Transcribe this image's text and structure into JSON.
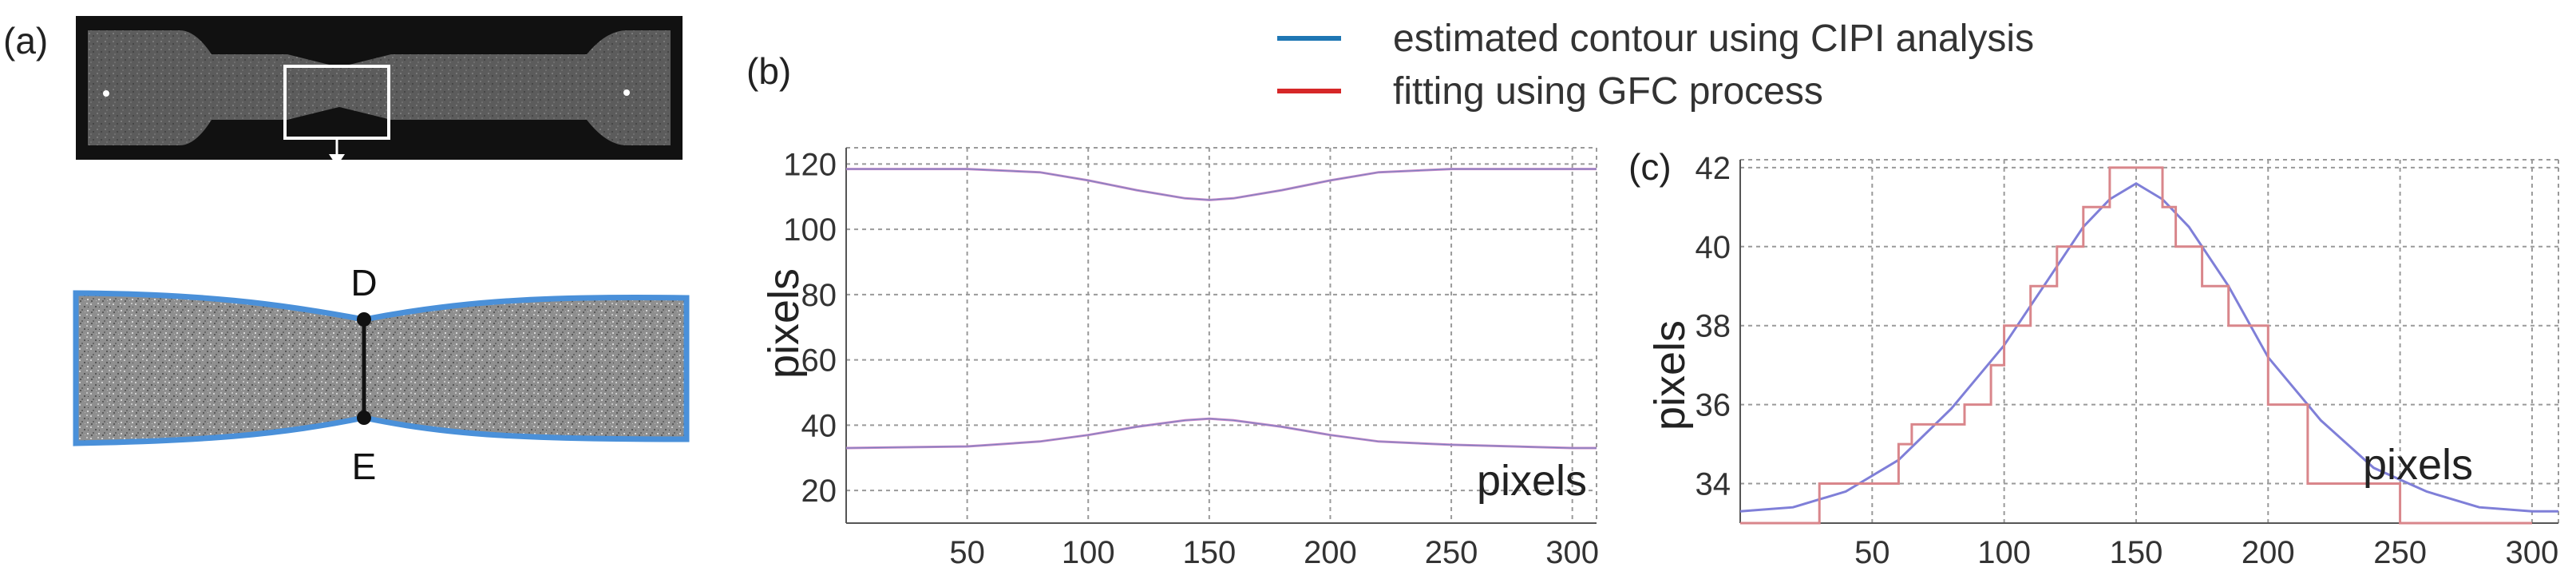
{
  "labels": {
    "panel_a": "(a)",
    "panel_b": "(b)",
    "panel_c": "(c)",
    "point_d": "D",
    "point_e": "E"
  },
  "legend": [
    {
      "label": "estimated contour using CIPI analysis",
      "color": "#1f77b4"
    },
    {
      "label": "fitting using GFC process",
      "color": "#d62728"
    }
  ],
  "colors": {
    "cipi": "#1f77b4",
    "gfc": "#d62728",
    "fit_b": "#c989c9",
    "fit_c": "#7f7fd8",
    "step_c": "#d9868b",
    "grid": "#9a9a9a",
    "specimen_outline": "#4a90d9"
  },
  "chart_data": [
    {
      "id": "b",
      "type": "line",
      "xlabel": "pixels",
      "ylabel": "pixels",
      "xlim": [
        0,
        310
      ],
      "ylim": [
        10,
        125
      ],
      "xticks": [
        50,
        100,
        150,
        200,
        250,
        300
      ],
      "yticks": [
        20,
        40,
        60,
        80,
        100,
        120
      ],
      "grid": true,
      "series": [
        {
          "x": [
            0,
            50,
            80,
            100,
            120,
            140,
            150,
            160,
            180,
            200,
            220,
            250,
            300,
            310
          ],
          "values": [
            118.5,
            118.5,
            117.5,
            115,
            112,
            109.5,
            109,
            109.5,
            112,
            115,
            117.5,
            118.5,
            118.5,
            118.5
          ]
        },
        {
          "x": [
            0,
            50,
            80,
            100,
            120,
            140,
            150,
            160,
            180,
            200,
            220,
            250,
            300,
            310
          ],
          "values": [
            33,
            33.5,
            35,
            37,
            39.5,
            41.5,
            42,
            41.5,
            39.5,
            37,
            35,
            34,
            33,
            33
          ]
        }
      ]
    },
    {
      "id": "c",
      "type": "line",
      "xlabel": "pixels",
      "ylabel": "pixels",
      "xlim": [
        0,
        310
      ],
      "ylim": [
        33.0,
        42.2
      ],
      "xticks": [
        50,
        100,
        150,
        200,
        250,
        300
      ],
      "yticks": [
        34,
        36,
        38,
        40,
        42
      ],
      "grid": true,
      "series": [
        {
          "x": [
            0,
            20,
            40,
            60,
            80,
            100,
            115,
            130,
            140,
            150,
            160,
            170,
            185,
            200,
            220,
            240,
            260,
            280,
            300,
            310
          ],
          "values": [
            33.3,
            33.4,
            33.8,
            34.6,
            35.9,
            37.5,
            39.0,
            40.5,
            41.2,
            41.6,
            41.2,
            40.5,
            39.0,
            37.2,
            35.6,
            34.4,
            33.8,
            33.4,
            33.3,
            33.3
          ]
        },
        {
          "x": [
            0,
            30,
            30,
            60,
            60,
            65,
            65,
            85,
            85,
            95,
            95,
            100,
            100,
            110,
            110,
            120,
            120,
            130,
            130,
            140,
            140,
            160,
            160,
            165,
            165,
            175,
            175,
            185,
            185,
            200,
            200,
            215,
            215,
            250,
            250,
            300
          ],
          "values": [
            33,
            33,
            34,
            34,
            35,
            35,
            35.5,
            35.5,
            36,
            36,
            37,
            37,
            38,
            38,
            39,
            39,
            40,
            40,
            41,
            41,
            42,
            42,
            41,
            41,
            40,
            40,
            39,
            39,
            38,
            38,
            36,
            36,
            34,
            34,
            33,
            33
          ]
        }
      ]
    }
  ]
}
